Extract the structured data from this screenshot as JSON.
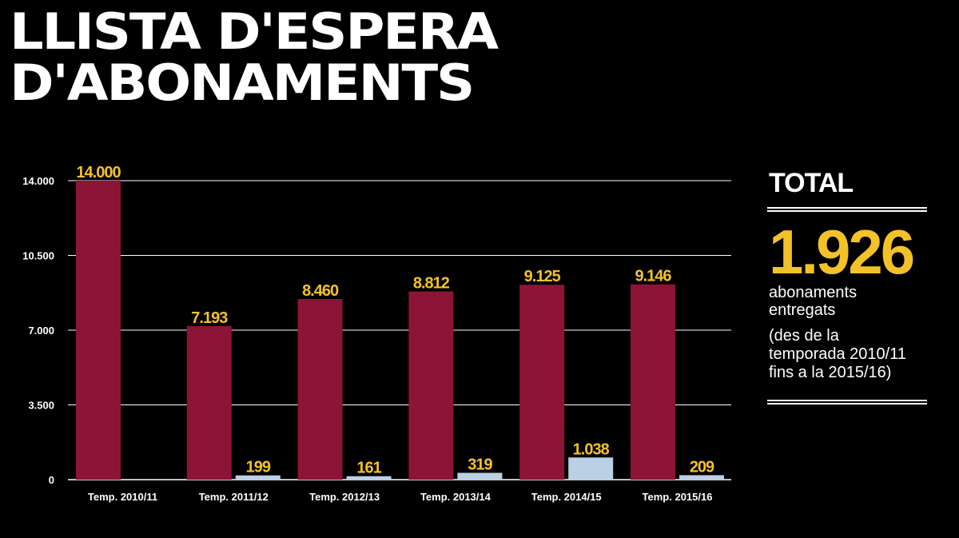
{
  "title": {
    "line1": "LLISTA D'ESPERA",
    "line2": "D'ABONAMENTS"
  },
  "colors": {
    "primary": "#8c1537",
    "secondary": "#bcd0e5",
    "label_primary": "#f3c229",
    "label_secondary": "#f3c229"
  },
  "chart_data": {
    "type": "bar",
    "categories": [
      "Temp. 2010/11",
      "Temp. 2011/12",
      "Temp. 2012/13",
      "Temp. 2013/14",
      "Temp. 2014/15",
      "Temp. 2015/16"
    ],
    "series": [
      {
        "values": [
          14000,
          7193,
          8460,
          8812,
          9125,
          9146
        ],
        "labels": [
          "14.000",
          "7.193",
          "8.460",
          "8.812",
          "9.125",
          "9.146"
        ]
      },
      {
        "values": [
          null,
          199,
          161,
          319,
          1038,
          209
        ],
        "labels": [
          "",
          "199",
          "161",
          "319",
          "1.038",
          "209"
        ]
      }
    ],
    "yticks": [
      0,
      3500,
      7000,
      10500,
      14000
    ],
    "ytick_labels": [
      "0",
      "3.500",
      "7.000",
      "10.500",
      "14.000"
    ],
    "ylim": [
      0,
      14000
    ],
    "grid": true
  },
  "side": {
    "total_label": "TOTAL",
    "total_value": "1.926",
    "desc": [
      "abonaments",
      "entregats"
    ],
    "note": [
      "(des de la",
      "temporada 2010/11",
      "fins a la 2015/16)"
    ]
  }
}
